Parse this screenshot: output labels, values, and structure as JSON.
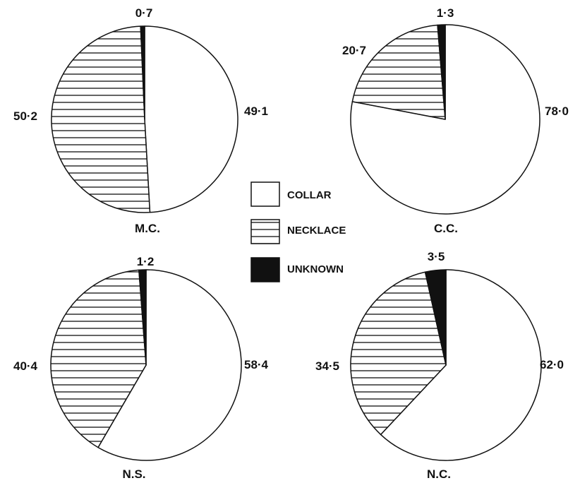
{
  "chart_data": [
    {
      "type": "pie",
      "name": "M.C.",
      "categories": [
        "COLLAR",
        "NECKLACE",
        "UNKNOWN"
      ],
      "values": [
        49.1,
        50.2,
        0.7
      ],
      "labels": [
        "49·1",
        "50·2",
        "0·7"
      ]
    },
    {
      "type": "pie",
      "name": "C.C.",
      "categories": [
        "COLLAR",
        "NECKLACE",
        "UNKNOWN"
      ],
      "values": [
        78.0,
        20.7,
        1.3
      ],
      "labels": [
        "78·0",
        "20·7",
        "1·3"
      ]
    },
    {
      "type": "pie",
      "name": "N.S.",
      "categories": [
        "COLLAR",
        "NECKLACE",
        "UNKNOWN"
      ],
      "values": [
        58.4,
        40.4,
        1.2
      ],
      "labels": [
        "58·4",
        "40·4",
        "1·2"
      ]
    },
    {
      "type": "pie",
      "name": "N.C.",
      "categories": [
        "COLLAR",
        "NECKLACE",
        "UNKNOWN"
      ],
      "values": [
        62.0,
        34.5,
        3.5
      ],
      "labels": [
        "62·0",
        "34·5",
        "3·5"
      ]
    }
  ],
  "legend": {
    "placement": "center",
    "items": [
      {
        "label": "COLLAR",
        "fill": "open"
      },
      {
        "label": "NECKLACE",
        "fill": "horizontal-hatch"
      },
      {
        "label": "UNKNOWN",
        "fill": "solid"
      }
    ]
  },
  "colors": {
    "ink": "#111111",
    "background": "#ffffff"
  }
}
